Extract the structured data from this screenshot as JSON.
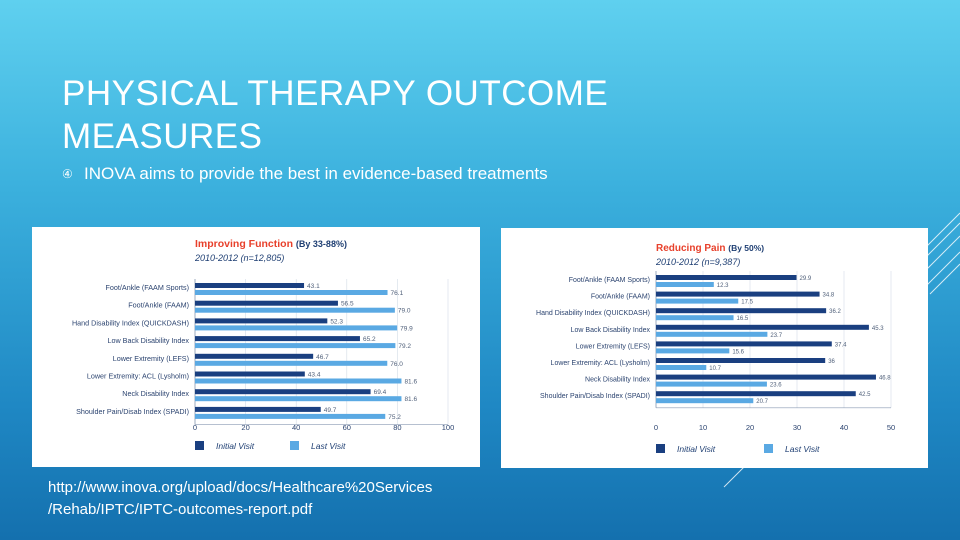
{
  "slide": {
    "title_line1": "PHYSICAL THERAPY OUTCOME",
    "title_line2": "MEASURES",
    "bullet_icon": "circled-number-icon",
    "bullet_glyph": "④",
    "bullet_text": "INOVA aims to provide the best in evidence-based treatments",
    "source_line1": "http://www.inova.org/upload/docs/Healthcare%20Services",
    "source_line2": "/Rehab/IPTC/IPTC-outcomes-report.pdf"
  },
  "colors": {
    "initial": "#1a3f80",
    "last": "#5aa9e3",
    "title": "#e8402b",
    "subtitle": "#1f3f73",
    "label": "#2c4470",
    "axis": "#8b9bb3"
  },
  "chart_data": [
    {
      "type": "bar",
      "orientation": "horizontal",
      "title": "Improving Function",
      "title_suffix": "(By 33-88%)",
      "subtitle": "2010-2012 (n=12,805)",
      "categories": [
        "Foot/Ankle (FAAM Sports)",
        "Foot/Ankle (FAAM)",
        "Hand Disability Index (QUICKDASH)",
        "Low Back Disability Index",
        "Lower Extremity (LEFS)",
        "Lower Extremity: ACL (Lysholm)",
        "Neck Disability Index",
        "Shoulder Pain/Disab Index (SPADI)"
      ],
      "series": [
        {
          "name": "Initial Visit",
          "values": [
            43.1,
            56.5,
            52.3,
            65.2,
            46.7,
            43.4,
            69.4,
            49.7
          ],
          "labels": [
            "43.1",
            "56.5",
            "52.3",
            "65.2",
            "46.7",
            "43.4",
            "69.4",
            "49.7"
          ]
        },
        {
          "name": "Last Visit",
          "values": [
            76.1,
            79.0,
            79.9,
            79.2,
            76.0,
            81.6,
            81.6,
            75.2
          ],
          "labels": [
            "76.1",
            "79.0",
            "79.9",
            "79.2",
            "76.0",
            "81.6",
            "81.6",
            "75.2"
          ]
        }
      ],
      "xlim": [
        0,
        100
      ],
      "xticks": [
        0,
        20,
        40,
        60,
        80,
        100
      ],
      "legend": [
        "Initial Visit",
        "Last Visit"
      ]
    },
    {
      "type": "bar",
      "orientation": "horizontal",
      "title": "Reducing Pain",
      "title_suffix": "(By 50%)",
      "subtitle": "2010-2012 (n=9,387)",
      "categories": [
        "Foot/Ankle (FAAM Sports)",
        "Foot/Ankle (FAAM)",
        "Hand Disability Index (QUICKDASH)",
        "Low Back Disability Index",
        "Lower Extremity (LEFS)",
        "Lower Extremity: ACL (Lysholm)",
        "Neck Disability Index",
        "Shoulder Pain/Disab Index (SPADI)"
      ],
      "series": [
        {
          "name": "Initial Visit",
          "values": [
            29.9,
            34.8,
            36.2,
            45.3,
            37.4,
            36,
            46.8,
            42.5
          ],
          "labels": [
            "29.9",
            "34.8",
            "36.2",
            "45.3",
            "37.4",
            "36",
            "46.8",
            "42.5"
          ]
        },
        {
          "name": "Last Visit",
          "values": [
            12.3,
            17.5,
            16.5,
            23.7,
            15.6,
            10.7,
            23.6,
            20.7
          ],
          "labels": [
            "12.3",
            "17.5",
            "16.5",
            "23.7",
            "15.6",
            "10.7",
            "23.6",
            "20.7"
          ]
        }
      ],
      "xlim": [
        0,
        50
      ],
      "xticks": [
        0,
        10,
        20,
        30,
        40,
        50
      ],
      "legend": [
        "Initial Visit",
        "Last Visit"
      ]
    }
  ]
}
